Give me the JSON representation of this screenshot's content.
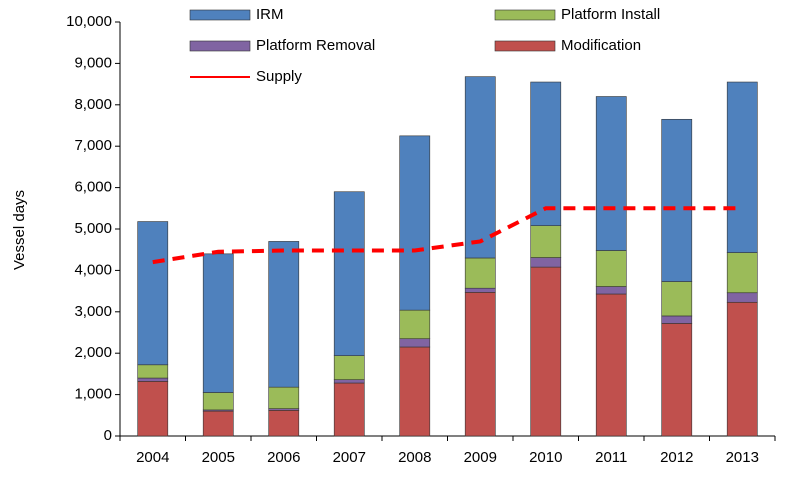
{
  "chart_data": {
    "type": "stacked-bar-line",
    "y_label": "Vessel days",
    "categories": [
      "2004",
      "2005",
      "2006",
      "2007",
      "2008",
      "2009",
      "2010",
      "2011",
      "2012",
      "2013"
    ],
    "series": [
      {
        "name": "Modification",
        "type": "bar",
        "color": "#c0504d",
        "values": [
          1320,
          600,
          620,
          1280,
          2150,
          3470,
          4080,
          3430,
          2720,
          3230
        ]
      },
      {
        "name": "Platform Removal",
        "type": "bar",
        "color": "#8064a2",
        "values": [
          80,
          30,
          40,
          80,
          200,
          100,
          230,
          180,
          180,
          230
        ]
      },
      {
        "name": "Platform Install",
        "type": "bar",
        "color": "#9bbb59",
        "values": [
          320,
          420,
          520,
          580,
          690,
          730,
          770,
          870,
          830,
          970
        ]
      },
      {
        "name": "IRM",
        "type": "bar",
        "color": "#4f81bd",
        "values": [
          3460,
          3350,
          3520,
          3960,
          4210,
          4380,
          3470,
          3720,
          3920,
          4120
        ]
      },
      {
        "name": "Supply",
        "type": "line",
        "color": "#ff0000",
        "values": [
          4200,
          4450,
          4480,
          4480,
          4480,
          4700,
          5500,
          5500,
          5500,
          5500
        ]
      }
    ],
    "ylim": [
      0,
      10000
    ],
    "yticks": [
      0,
      {
        "value": 1000,
        "label": "1,000"
      },
      {
        "value": 2000,
        "label": "2,000"
      },
      {
        "value": 3000,
        "label": "3,000"
      },
      {
        "value": 4000,
        "label": "4,000"
      },
      {
        "value": 5000,
        "label": "5,000"
      },
      {
        "value": 6000,
        "label": "6,000"
      },
      {
        "value": 7000,
        "label": "7,000"
      },
      {
        "value": 8000,
        "label": "8,000"
      },
      {
        "value": 9000,
        "label": "9,000"
      },
      {
        "value": 10000,
        "label": "10,000"
      }
    ],
    "legend_order": [
      3,
      2,
      1,
      0,
      4
    ]
  }
}
